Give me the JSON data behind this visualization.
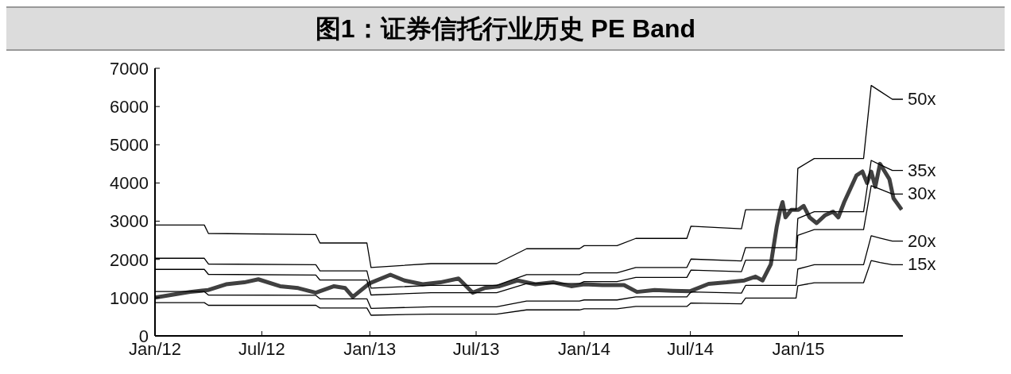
{
  "chart_data": {
    "type": "line",
    "title": "图1：证券信托行业历史 PE Band",
    "xlim": [
      "2012-01-01",
      "2015-06-28"
    ],
    "xticks": [
      {
        "value": "2012-01-01",
        "label": "Jan/12"
      },
      {
        "value": "2012-07-01",
        "label": "Jul/12"
      },
      {
        "value": "2013-01-01",
        "label": "Jan/13"
      },
      {
        "value": "2013-07-01",
        "label": "Jul/13"
      },
      {
        "value": "2014-01-01",
        "label": "Jan/14"
      },
      {
        "value": "2014-07-01",
        "label": "Jul/14"
      },
      {
        "value": "2015-01-01",
        "label": "Jan/15"
      }
    ],
    "ylim": [
      0,
      7000
    ],
    "yticks": [
      0,
      1000,
      2000,
      3000,
      4000,
      5000,
      6000,
      7000
    ],
    "grid": false,
    "legend": false,
    "series": [
      {
        "color": "#404040",
        "x": [
          "2012-01-01",
          "2012-02-01",
          "2012-03-01",
          "2012-04-01",
          "2012-05-01",
          "2012-06-01",
          "2012-06-25",
          "2012-08-01",
          "2012-09-01",
          "2012-10-01",
          "2012-11-01",
          "2012-11-20",
          "2012-12-03",
          "2013-01-01",
          "2013-02-05",
          "2013-03-01",
          "2013-04-01",
          "2013-05-01",
          "2013-06-01",
          "2013-06-25",
          "2013-07-15",
          "2013-08-10",
          "2013-09-10",
          "2013-10-10",
          "2013-11-10",
          "2013-12-10",
          "2014-01-01",
          "2014-02-01",
          "2014-03-10",
          "2014-04-01",
          "2014-05-01",
          "2014-06-01",
          "2014-07-01",
          "2014-08-01",
          "2014-09-01",
          "2014-10-01",
          "2014-10-20",
          "2014-11-01",
          "2014-11-15",
          "2014-11-25",
          "2014-12-01",
          "2014-12-05",
          "2014-12-10",
          "2014-12-20",
          "2015-01-01",
          "2015-01-10",
          "2015-01-20",
          "2015-02-01",
          "2015-02-15",
          "2015-03-01",
          "2015-03-10",
          "2015-03-20",
          "2015-04-01",
          "2015-04-10",
          "2015-04-20",
          "2015-04-28",
          "2015-05-05",
          "2015-05-12",
          "2015-05-20",
          "2015-05-28",
          "2015-06-05",
          "2015-06-12",
          "2015-06-26"
        ],
        "values": [
          1000,
          1080,
          1150,
          1200,
          1350,
          1400,
          1480,
          1300,
          1250,
          1130,
          1300,
          1250,
          1020,
          1380,
          1600,
          1450,
          1350,
          1400,
          1500,
          1130,
          1250,
          1300,
          1450,
          1350,
          1400,
          1300,
          1350,
          1330,
          1330,
          1150,
          1200,
          1180,
          1170,
          1360,
          1400,
          1450,
          1550,
          1450,
          1870,
          2850,
          3300,
          3500,
          3100,
          3300,
          3300,
          3400,
          3100,
          2950,
          3150,
          3250,
          3100,
          3500,
          3900,
          4200,
          4300,
          4000,
          4300,
          3900,
          4500,
          4300,
          4100,
          3600,
          3300
        ]
      },
      {
        "name": "50x",
        "color": "#000000",
        "x": [
          "2012-01-01",
          "2012-03-25",
          "2012-04-01",
          "2012-10-01",
          "2012-10-08",
          "2012-12-27",
          "2013-01-03",
          "2013-04-15",
          "2013-08-05",
          "2013-09-25",
          "2013-12-24",
          "2014-01-01",
          "2014-02-26",
          "2014-03-30",
          "2014-06-25",
          "2014-07-02",
          "2014-09-26",
          "2014-10-03",
          "2014-12-28",
          "2014-12-31",
          "2015-01-28",
          "2015-04-22",
          "2015-05-05",
          "2015-05-20",
          "2015-06-10",
          "2015-06-28"
        ],
        "values": [
          2900,
          2900,
          2680,
          2650,
          2430,
          2430,
          1790,
          1890,
          1890,
          2280,
          2280,
          2360,
          2360,
          2550,
          2550,
          2870,
          2800,
          3300,
          3300,
          4380,
          4640,
          4640,
          6550,
          6400,
          6190,
          6190
        ]
      },
      {
        "name": "35x",
        "color": "#000000",
        "x": [
          "2012-01-01",
          "2012-03-25",
          "2012-04-01",
          "2012-10-01",
          "2012-10-08",
          "2012-12-27",
          "2013-01-03",
          "2013-04-15",
          "2013-08-05",
          "2013-09-25",
          "2013-12-24",
          "2014-01-01",
          "2014-02-26",
          "2014-03-30",
          "2014-06-25",
          "2014-07-02",
          "2014-09-26",
          "2014-10-03",
          "2014-12-28",
          "2014-12-31",
          "2015-01-28",
          "2015-04-22",
          "2015-05-05",
          "2015-05-20",
          "2015-06-10",
          "2015-06-28"
        ],
        "values": [
          2030,
          2030,
          1880,
          1860,
          1700,
          1700,
          1250,
          1320,
          1320,
          1600,
          1600,
          1650,
          1650,
          1790,
          1790,
          2010,
          1960,
          2310,
          2310,
          3070,
          3250,
          3250,
          4590,
          4480,
          4330,
          4330
        ]
      },
      {
        "name": "30x",
        "color": "#000000",
        "x": [
          "2012-01-01",
          "2012-03-25",
          "2012-04-01",
          "2012-10-01",
          "2012-10-08",
          "2012-12-27",
          "2013-01-03",
          "2013-04-15",
          "2013-08-05",
          "2013-09-25",
          "2013-12-24",
          "2014-01-01",
          "2014-02-26",
          "2014-03-30",
          "2014-06-25",
          "2014-07-02",
          "2014-09-26",
          "2014-10-03",
          "2014-12-28",
          "2014-12-31",
          "2015-01-28",
          "2015-04-22",
          "2015-05-05",
          "2015-05-20",
          "2015-06-10",
          "2015-06-28"
        ],
        "values": [
          1740,
          1740,
          1610,
          1590,
          1460,
          1460,
          1070,
          1130,
          1130,
          1370,
          1370,
          1420,
          1420,
          1530,
          1530,
          1720,
          1680,
          1980,
          1980,
          2630,
          2780,
          2780,
          3930,
          3840,
          3710,
          3710
        ]
      },
      {
        "name": "20x",
        "color": "#000000",
        "x": [
          "2012-01-01",
          "2012-03-25",
          "2012-04-01",
          "2012-10-01",
          "2012-10-08",
          "2012-12-27",
          "2013-01-03",
          "2013-04-15",
          "2013-08-05",
          "2013-09-25",
          "2013-12-24",
          "2014-01-01",
          "2014-02-26",
          "2014-03-30",
          "2014-06-25",
          "2014-07-02",
          "2014-09-26",
          "2014-10-03",
          "2014-12-28",
          "2014-12-31",
          "2015-01-28",
          "2015-04-22",
          "2015-05-05",
          "2015-05-20",
          "2015-06-10",
          "2015-06-28"
        ],
        "values": [
          1160,
          1160,
          1070,
          1060,
          970,
          970,
          720,
          760,
          760,
          910,
          910,
          940,
          940,
          1020,
          1020,
          1150,
          1120,
          1320,
          1320,
          1750,
          1860,
          1860,
          2620,
          2560,
          2480,
          2480
        ]
      },
      {
        "name": "15x",
        "color": "#000000",
        "x": [
          "2012-01-01",
          "2012-03-25",
          "2012-04-01",
          "2012-10-01",
          "2012-10-08",
          "2012-12-27",
          "2013-01-03",
          "2013-04-15",
          "2013-08-05",
          "2013-09-25",
          "2013-12-24",
          "2014-01-01",
          "2014-02-26",
          "2014-03-30",
          "2014-06-25",
          "2014-07-02",
          "2014-09-26",
          "2014-10-03",
          "2014-12-28",
          "2014-12-31",
          "2015-01-28",
          "2015-04-22",
          "2015-05-05",
          "2015-05-20",
          "2015-06-10",
          "2015-06-28"
        ],
        "values": [
          870,
          870,
          800,
          800,
          730,
          730,
          540,
          570,
          570,
          680,
          680,
          710,
          710,
          770,
          770,
          860,
          840,
          990,
          990,
          1310,
          1390,
          1390,
          1970,
          1920,
          1860,
          1860
        ]
      }
    ]
  }
}
